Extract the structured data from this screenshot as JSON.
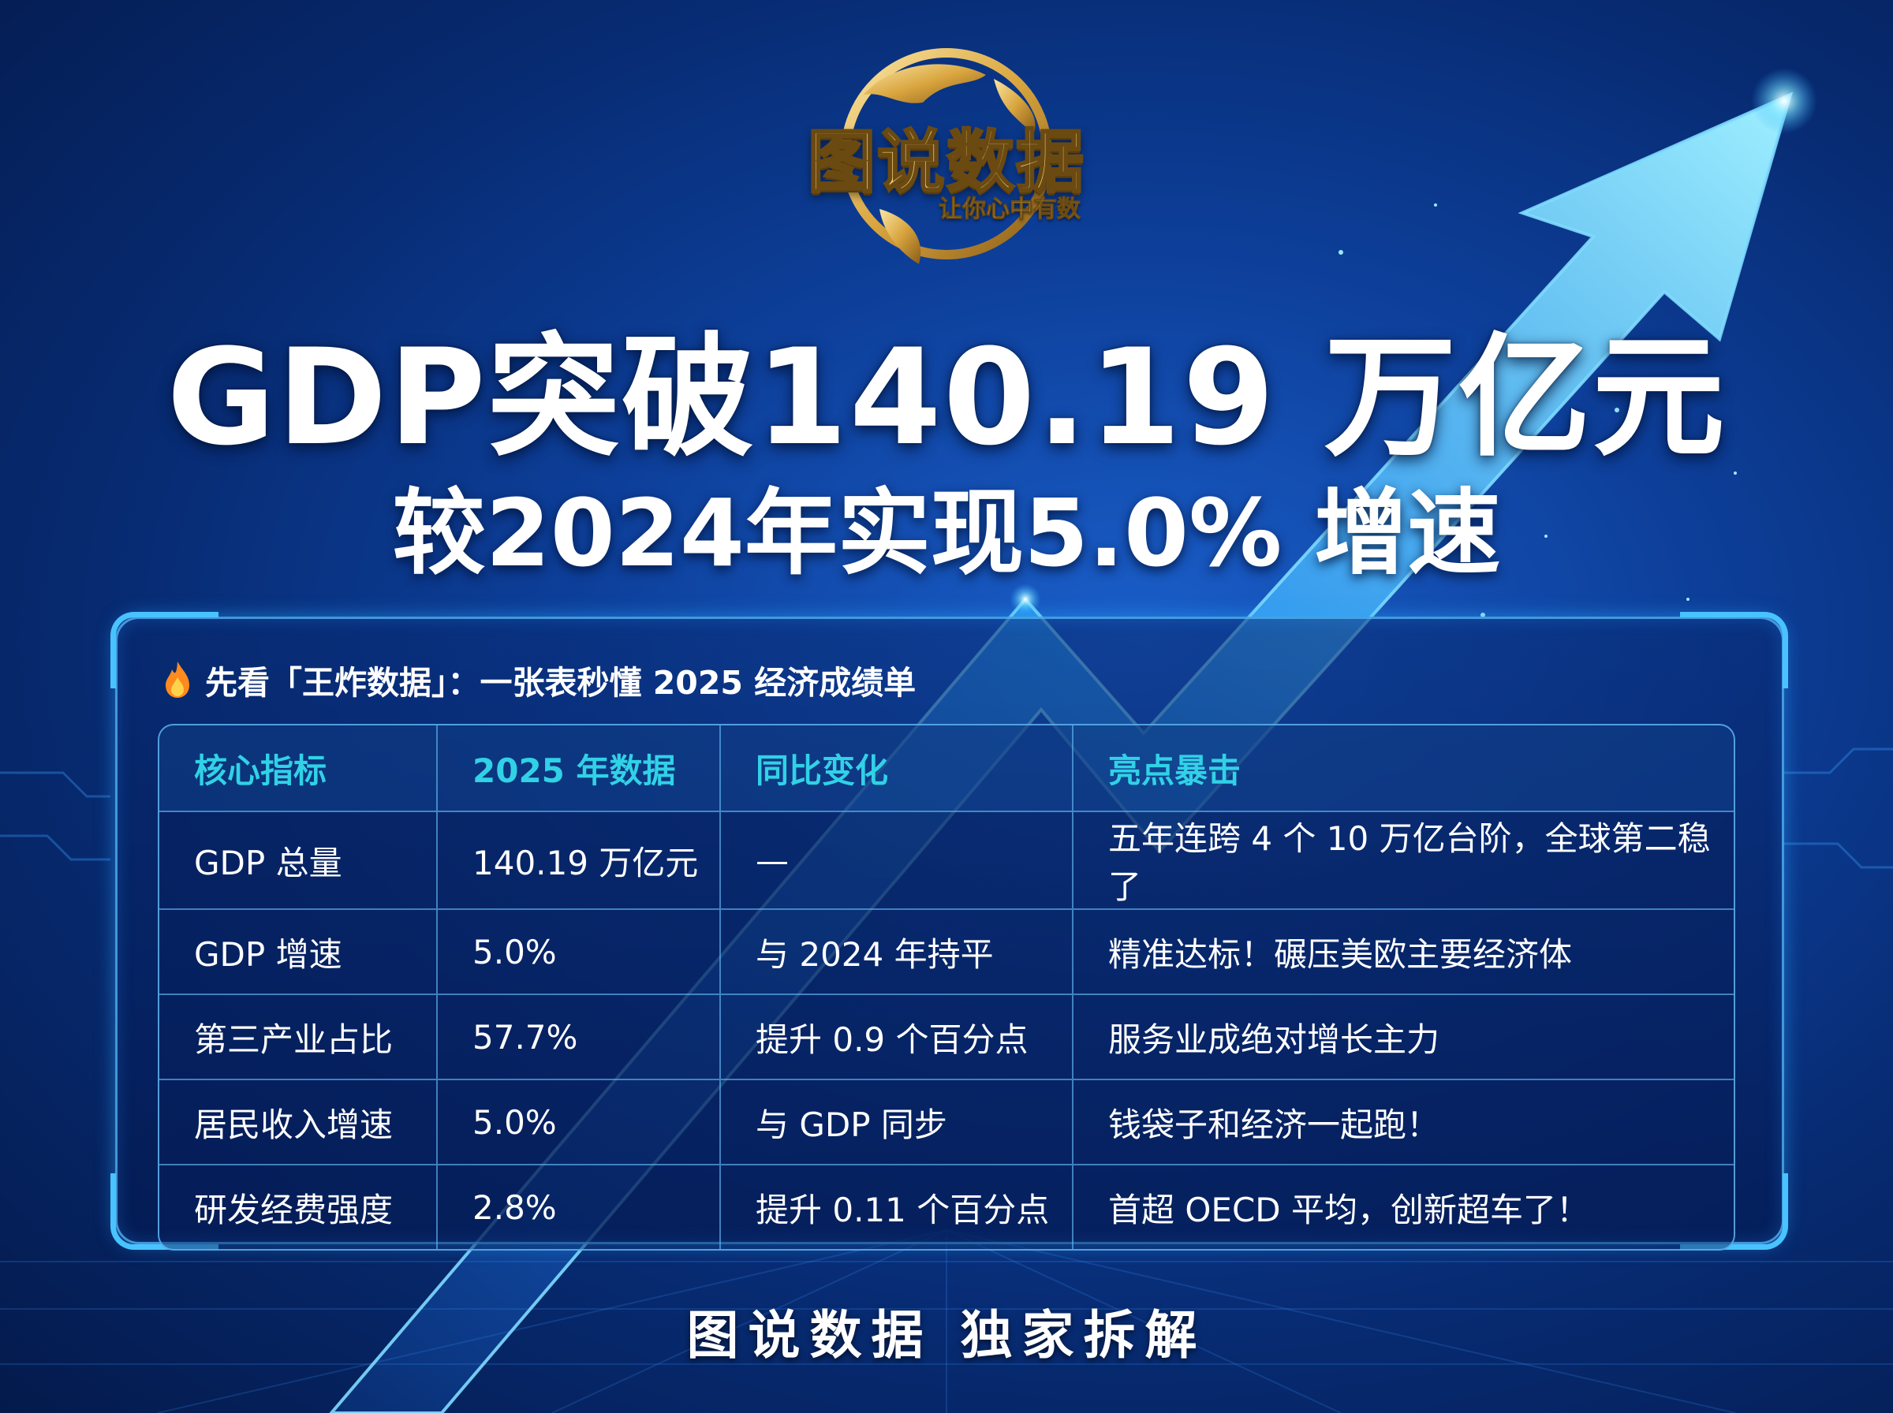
{
  "colors": {
    "background_dark": "#041a4c",
    "background_mid": "#0d3f9a",
    "arrow_glow": "#49c3ff",
    "header_text": "#31d1e6",
    "logo_gold": "#f1cf7a"
  },
  "logo": {
    "title": "图说数据",
    "slogan": "让你心中有数",
    "icon": "globe-icon"
  },
  "headline": "GDP突破140.19 万亿元",
  "subheadline": "较2024年实现5.0% 增速",
  "panel": {
    "intro_icon": "flame-icon",
    "intro": "先看「王炸数据」：一张表秒懂 2025 经济成绩单",
    "headers": [
      "核心指标",
      "2025 年数据",
      "同比变化",
      "亮点暴击"
    ],
    "rows": [
      [
        "GDP 总量",
        "140.19 万亿元",
        "—",
        "五年连跨 4 个 10 万亿台阶，全球第二稳了"
      ],
      [
        "GDP 增速",
        "5.0%",
        "与 2024 年持平",
        "精准达标！碾压美欧主要经济体"
      ],
      [
        "第三产业占比",
        "57.7%",
        "提升 0.9 个百分点",
        "服务业成绝对增长主力"
      ],
      [
        "居民收入增速",
        "5.0%",
        "与 GDP 同步",
        "钱袋子和经济一起跑！"
      ],
      [
        "研发经费强度",
        "2.8%",
        "提升 0.11 个百分点",
        "首超 OECD 平均，创新超车了！"
      ]
    ]
  },
  "footer": "图说数据 独家拆解"
}
